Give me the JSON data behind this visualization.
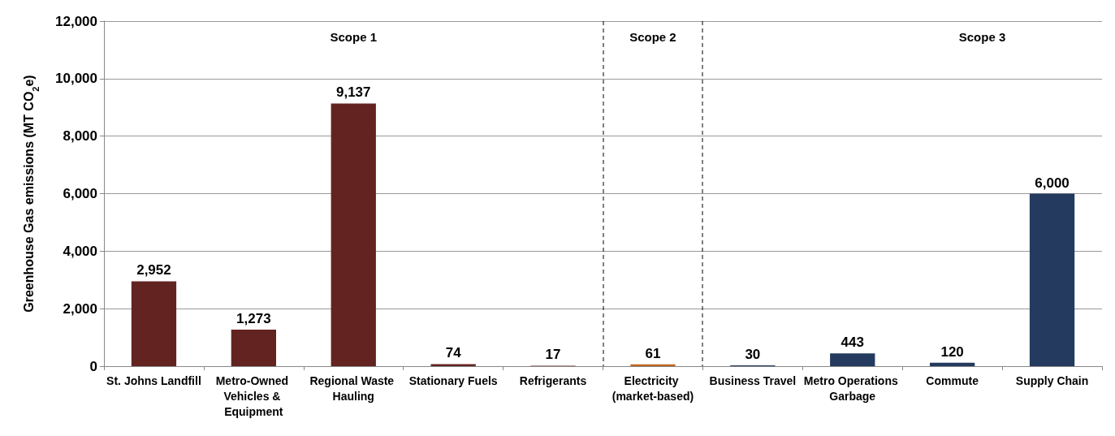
{
  "chart_data": {
    "type": "bar",
    "ylabel": "Greenhouse Gas emissions (MT CO$_{2}$e)",
    "categories": [
      "St. Johns Landfill",
      "Metro-Owned Vehicles & Equipment",
      "Regional Waste Hauling",
      "Stationary Fuels",
      "Refrigerants",
      "Electricity (market-based)",
      "Business Travel",
      "Metro Operations Garbage",
      "Commute",
      "Supply Chain"
    ],
    "values": [
      2952,
      1273,
      9137,
      74,
      17,
      61,
      30,
      443,
      120,
      6000
    ],
    "value_labels": [
      "2,952",
      "1,273",
      "9,137",
      "74",
      "17",
      "61",
      "30",
      "443",
      "120",
      "6,000"
    ],
    "colors": [
      "#632321",
      "#632321",
      "#632321",
      "#632321",
      "#632321",
      "#c0651d",
      "#243a5e",
      "#243a5e",
      "#243a5e",
      "#243a5e"
    ],
    "ylim": [
      0,
      12000
    ],
    "yticks": [
      {
        "value": 0,
        "label": "0"
      },
      {
        "value": 2000,
        "label": "2,000"
      },
      {
        "value": 4000,
        "label": "4,000"
      },
      {
        "value": 6000,
        "label": "6,000"
      },
      {
        "value": 8000,
        "label": "8,000"
      },
      {
        "value": 10000,
        "label": "10,000"
      },
      {
        "value": 12000,
        "label": "12,000"
      }
    ],
    "annotations": [
      "Scope 1",
      "Scope 2",
      "Scope 3"
    ],
    "grid": "y"
  }
}
